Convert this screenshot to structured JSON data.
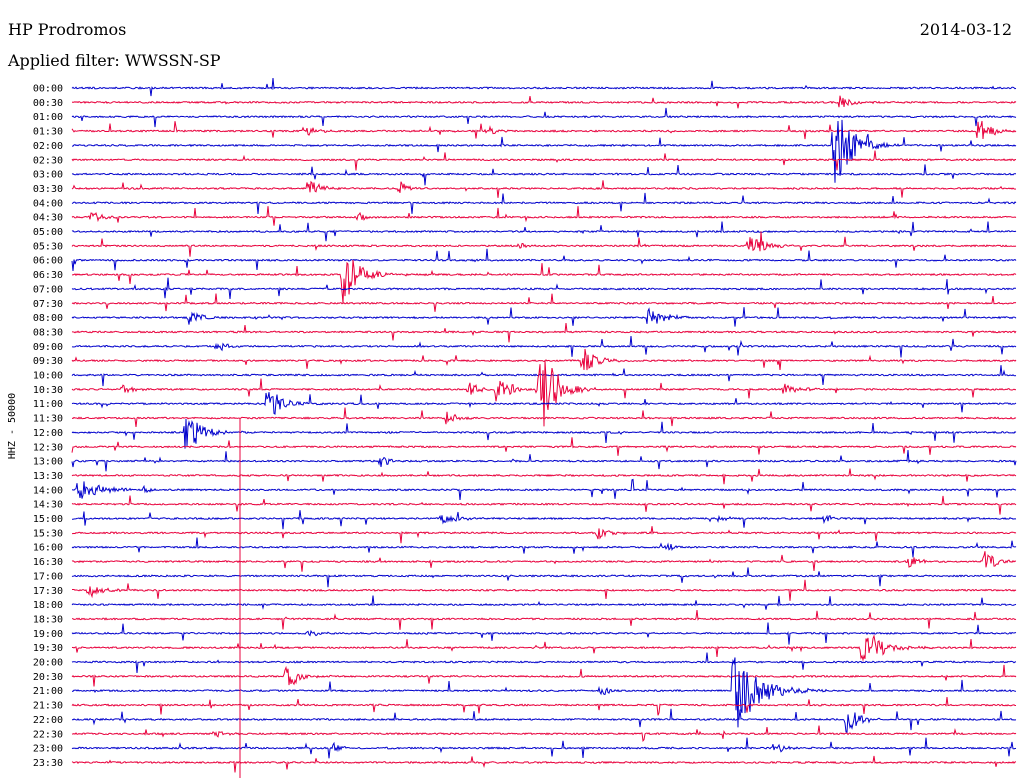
{
  "header": {
    "station": "HP Prodromos",
    "date": "2014-03-12",
    "filter_text": "Applied filter: WWSSN-SP"
  },
  "chart_data": {
    "type": "seismogram-helicorder",
    "ylabel": "HHZ - 50000",
    "row_times": [
      "00:00",
      "00:30",
      "01:00",
      "01:30",
      "02:00",
      "02:30",
      "03:00",
      "03:30",
      "04:00",
      "04:30",
      "05:00",
      "05:30",
      "06:00",
      "06:30",
      "07:00",
      "07:30",
      "08:00",
      "08:30",
      "09:00",
      "09:30",
      "10:00",
      "10:30",
      "11:00",
      "11:30",
      "12:00",
      "12:30",
      "13:00",
      "13:30",
      "14:00",
      "14:30",
      "15:00",
      "15:30",
      "16:00",
      "16:30",
      "17:00",
      "17:30",
      "18:00",
      "18:30",
      "19:00",
      "19:30",
      "20:00",
      "20:30",
      "21:00",
      "21:30",
      "22:00",
      "22:30",
      "23:00",
      "23:30"
    ],
    "trace_colors": [
      "#0000cc",
      "#e8003c"
    ],
    "events": [
      {
        "row": 1,
        "minute": 24.5,
        "amplitude": 0.6,
        "duration_min": 0.8
      },
      {
        "row": 3,
        "minute": 7.5,
        "amplitude": 0.5,
        "duration_min": 0.9
      },
      {
        "row": 3,
        "minute": 13.2,
        "amplitude": 0.6,
        "duration_min": 0.7
      },
      {
        "row": 3,
        "minute": 28.8,
        "amplitude": 1.5,
        "duration_min": 1.0
      },
      {
        "row": 4,
        "minute": 24.2,
        "amplitude": 4.5,
        "duration_min": 1.5
      },
      {
        "row": 7,
        "minute": 7.5,
        "amplitude": 1.0,
        "duration_min": 1.2
      },
      {
        "row": 7,
        "minute": 10.4,
        "amplitude": 0.8,
        "duration_min": 0.7
      },
      {
        "row": 9,
        "minute": 0.6,
        "amplitude": 0.7,
        "duration_min": 0.8
      },
      {
        "row": 9,
        "minute": 9.1,
        "amplitude": 0.5,
        "duration_min": 0.8
      },
      {
        "row": 11,
        "minute": 14.2,
        "amplitude": 0.4,
        "duration_min": 0.6
      },
      {
        "row": 11,
        "minute": 21.5,
        "amplitude": 1.5,
        "duration_min": 1.2
      },
      {
        "row": 13,
        "minute": 8.6,
        "amplitude": 2.8,
        "duration_min": 1.5
      },
      {
        "row": 16,
        "minute": 3.7,
        "amplitude": 0.7,
        "duration_min": 1.2
      },
      {
        "row": 16,
        "minute": 18.3,
        "amplitude": 0.9,
        "duration_min": 1.5
      },
      {
        "row": 18,
        "minute": 4.6,
        "amplitude": 0.8,
        "duration_min": 0.6
      },
      {
        "row": 19,
        "minute": 16.2,
        "amplitude": 1.8,
        "duration_min": 1.0
      },
      {
        "row": 21,
        "minute": 1.6,
        "amplitude": 0.6,
        "duration_min": 0.8
      },
      {
        "row": 21,
        "minute": 12.6,
        "amplitude": 0.9,
        "duration_min": 0.8
      },
      {
        "row": 21,
        "minute": 13.5,
        "amplitude": 2.5,
        "duration_min": 0.8
      },
      {
        "row": 21,
        "minute": 14.8,
        "amplitude": 6.0,
        "duration_min": 1.3
      },
      {
        "row": 21,
        "minute": 22.6,
        "amplitude": 0.7,
        "duration_min": 1.2
      },
      {
        "row": 22,
        "minute": 6.2,
        "amplitude": 2.0,
        "duration_min": 1.2
      },
      {
        "row": 23,
        "minute": 11.9,
        "amplitude": 0.8,
        "duration_min": 0.9
      },
      {
        "row": 24,
        "minute": 3.6,
        "amplitude": 2.3,
        "duration_min": 1.3
      },
      {
        "row": 26,
        "minute": 9.8,
        "amplitude": 0.6,
        "duration_min": 0.8
      },
      {
        "row": 28,
        "minute": 0.2,
        "amplitude": 1.5,
        "duration_min": 1.5
      },
      {
        "row": 28,
        "minute": 2.3,
        "amplitude": 0.4,
        "duration_min": 0.6
      },
      {
        "row": 30,
        "minute": 11.7,
        "amplitude": 0.6,
        "duration_min": 1.6
      },
      {
        "row": 30,
        "minute": 20.5,
        "amplitude": 0.4,
        "duration_min": 1.0
      },
      {
        "row": 30,
        "minute": 23.9,
        "amplitude": 0.5,
        "duration_min": 0.7
      },
      {
        "row": 31,
        "minute": 16.7,
        "amplitude": 0.6,
        "duration_min": 1.0
      },
      {
        "row": 32,
        "minute": 18.9,
        "amplitude": 0.6,
        "duration_min": 0.6
      },
      {
        "row": 33,
        "minute": 26.6,
        "amplitude": 0.6,
        "duration_min": 1.0
      },
      {
        "row": 33,
        "minute": 29.0,
        "amplitude": 1.2,
        "duration_min": 1.0
      },
      {
        "row": 35,
        "minute": 0.5,
        "amplitude": 0.8,
        "duration_min": 1.2
      },
      {
        "row": 38,
        "minute": 7.5,
        "amplitude": 0.4,
        "duration_min": 0.8
      },
      {
        "row": 39,
        "minute": 25.1,
        "amplitude": 2.4,
        "duration_min": 1.5
      },
      {
        "row": 41,
        "minute": 6.8,
        "amplitude": 1.5,
        "duration_min": 1.0
      },
      {
        "row": 42,
        "minute": 16.8,
        "amplitude": 0.7,
        "duration_min": 0.6
      },
      {
        "row": 42,
        "minute": 21.0,
        "amplitude": 4.5,
        "duration_min": 2.0
      },
      {
        "row": 44,
        "minute": 24.6,
        "amplitude": 1.5,
        "duration_min": 1.0
      },
      {
        "row": 45,
        "minute": 4.5,
        "amplitude": 0.4,
        "duration_min": 0.8
      },
      {
        "row": 46,
        "minute": 8.3,
        "amplitude": 0.6,
        "duration_min": 0.6
      },
      {
        "row": 46,
        "minute": 22.3,
        "amplitude": 0.6,
        "duration_min": 0.9
      }
    ]
  }
}
